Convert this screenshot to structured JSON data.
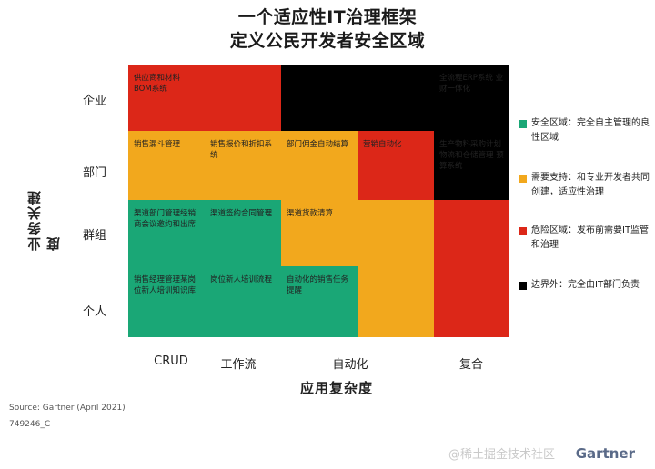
{
  "title_line1": "一个适应性IT治理框架",
  "title_line2": "定义公民开发者安全区域",
  "y_axis_title": "业务关建度",
  "x_axis_title": "应用复杂度",
  "colors": {
    "green": "#1aa776",
    "orange": "#f2a81d",
    "red": "#dc2718",
    "black": "#000000"
  },
  "chart_data": {
    "type": "heatmap",
    "title": "一个适应性IT治理框架 定义公民开发者安全区域",
    "xlabel": "应用复杂度",
    "ylabel": "业务关建度",
    "y_categories": [
      "企业",
      "部门",
      "群组",
      "个人"
    ],
    "x_categories": [
      "CRUD",
      "工作流",
      "",
      "自动化",
      "",
      "复合"
    ],
    "x_label_positions": [
      "CRUD",
      "工作流",
      "自动化",
      "复合"
    ],
    "cells": [
      {
        "row": 0,
        "col": 0,
        "zone": "red",
        "text": "供应商和材料 BOM系统"
      },
      {
        "row": 0,
        "col": 1,
        "zone": "red",
        "text": ""
      },
      {
        "row": 0,
        "col": 2,
        "zone": "black",
        "text": ""
      },
      {
        "row": 0,
        "col": 3,
        "zone": "black",
        "text": ""
      },
      {
        "row": 0,
        "col": 4,
        "zone": "black",
        "text": "全流程ERP系统 业财一体化"
      },
      {
        "row": 1,
        "col": 0,
        "zone": "orange",
        "text": "销售漏斗管理"
      },
      {
        "row": 1,
        "col": 1,
        "zone": "orange",
        "text": "销售报价和折扣系统"
      },
      {
        "row": 1,
        "col": 2,
        "zone": "orange",
        "text": "部门佣金自动结算"
      },
      {
        "row": 1,
        "col": 3,
        "zone": "red",
        "text": "营销自动化"
      },
      {
        "row": 1,
        "col": 4,
        "zone": "black",
        "text": "生产物料采购计划 物流和仓储管理 预算系统"
      },
      {
        "row": 2,
        "col": 0,
        "zone": "green",
        "text": "渠道部门管理经销商会议邀约和出席"
      },
      {
        "row": 2,
        "col": 1,
        "zone": "green",
        "text": "渠道签约合同管理"
      },
      {
        "row": 2,
        "col": 2,
        "zone": "orange",
        "text": "渠道货款清算"
      },
      {
        "row": 2,
        "col": 3,
        "zone": "orange",
        "text": ""
      },
      {
        "row": 2,
        "col": 4,
        "zone": "red",
        "text": ""
      },
      {
        "row": 3,
        "col": 0,
        "zone": "green",
        "text": "销售经理管理某岗位新人培训知识库"
      },
      {
        "row": 3,
        "col": 1,
        "zone": "green",
        "text": "岗位新人培训流程"
      },
      {
        "row": 3,
        "col": 2,
        "zone": "green",
        "text": "自动化的销售任务提醒"
      },
      {
        "row": 3,
        "col": 3,
        "zone": "orange",
        "text": ""
      },
      {
        "row": 3,
        "col": 4,
        "zone": "red",
        "text": ""
      }
    ],
    "legend": [
      {
        "zone": "green",
        "label": "安全区域：完全自主管理的良性区域"
      },
      {
        "zone": "orange",
        "label": "需要支持：和专业开发者共同创建，适应性治理"
      },
      {
        "zone": "red",
        "label": "危险区域：发布前需要IT监管和治理"
      },
      {
        "zone": "black",
        "label": "边界外：完全由IT部门负责"
      }
    ],
    "legend_position": "right"
  },
  "source": "Source: Gartner (April 2021)",
  "code": "749246_C",
  "watermark": "@稀土掘金技术社区",
  "brand": "Gartner"
}
